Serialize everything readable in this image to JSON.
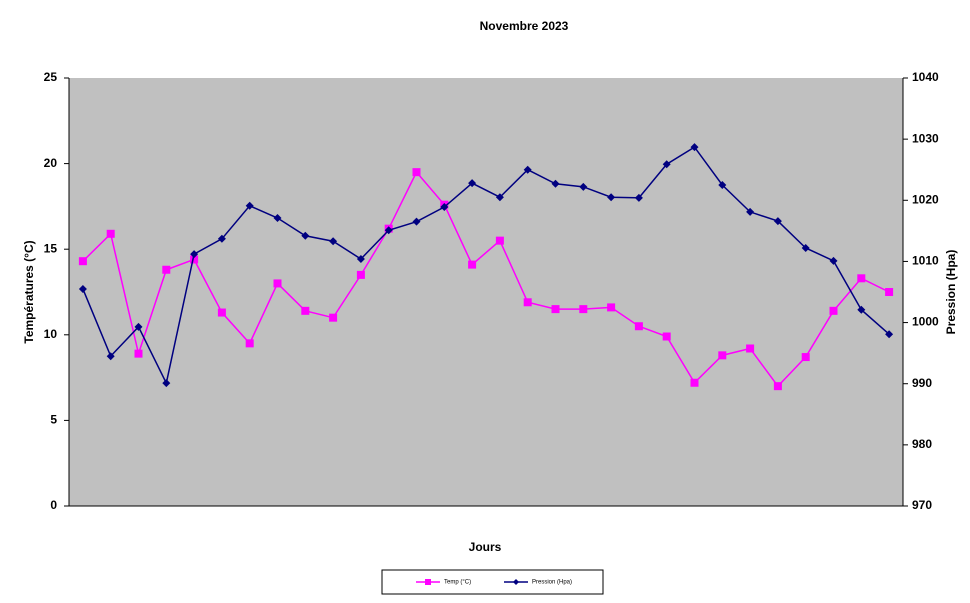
{
  "chart_data": {
    "type": "line",
    "title": "Novembre 2023",
    "xlabel": "Jours",
    "ylabel": "Températures (°C)",
    "y2label": "Pression (Hpa)",
    "categories": [
      null,
      null,
      null,
      null,
      null,
      null,
      null,
      null,
      null,
      null,
      null,
      null,
      null,
      null,
      null,
      null,
      null,
      null,
      null,
      null,
      null,
      null,
      null,
      null,
      null,
      null,
      null,
      null,
      null,
      null
    ],
    "series": [
      {
        "name": "Temp (°C)",
        "color": "#ff00ff",
        "marker": "square",
        "values": [
          14.3,
          15.9,
          8.9,
          13.8,
          14.4,
          11.3,
          9.5,
          13.0,
          11.4,
          11.0,
          13.5,
          16.2,
          19.5,
          17.6,
          14.1,
          15.5,
          11.9,
          11.5,
          11.5,
          11.6,
          10.5,
          9.9,
          7.2,
          8.8,
          9.2,
          7.0,
          8.7,
          11.4,
          13.3,
          12.5
        ]
      },
      {
        "name": "Pression (Hpa)",
        "color": "#000080",
        "marker": "diamond",
        "axis": "y2",
        "values": [
          1005.5,
          994.5,
          999.3,
          990.1,
          1011.2,
          1013.7,
          1019.1,
          1017.1,
          1014.2,
          1013.3,
          1010.4,
          1015.1,
          1016.5,
          1018.9,
          1022.8,
          1020.5,
          1025.0,
          1022.7,
          1022.2,
          1020.5,
          1020.4,
          1025.9,
          1028.7,
          1022.5,
          1018.1,
          1016.6,
          1012.2,
          1010.1,
          1002.1,
          998.1
        ]
      }
    ],
    "ylim": [
      0,
      25
    ],
    "yticks": [
      0,
      5,
      10,
      15,
      20,
      25
    ],
    "y2lim": [
      970,
      1040
    ],
    "y2ticks": [
      970,
      980,
      990,
      1000,
      1010,
      1020,
      1030,
      1040
    ],
    "grid": false,
    "plot_background": "#c0c0c0",
    "legend": "bottom"
  }
}
